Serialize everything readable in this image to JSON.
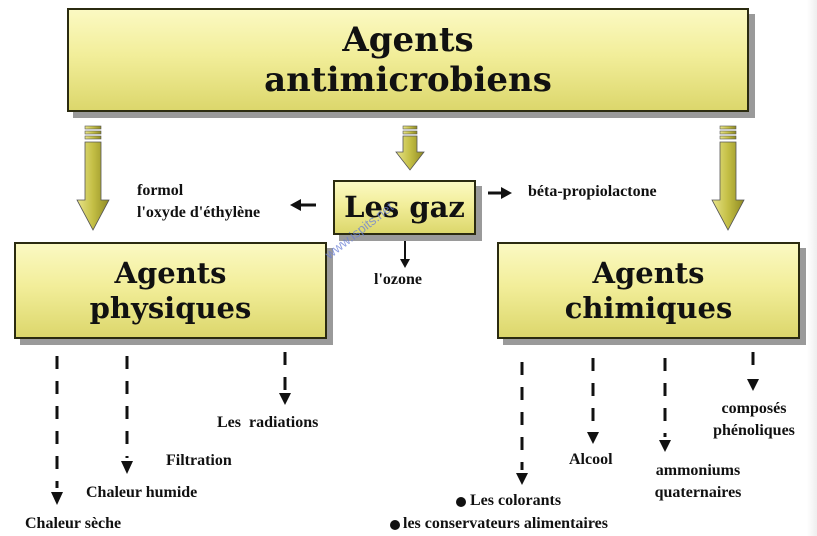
{
  "title": {
    "line1": "Agents",
    "line2": "antimicrobiens"
  },
  "gas": {
    "label": "Les gaz",
    "left_items": [
      "formol",
      "l'oxyde d'éthylène"
    ],
    "right_item": "béta-propiolactone",
    "bottom_item": "l'ozone"
  },
  "physical": {
    "title_line1": "Agents",
    "title_line2": "physiques",
    "items": [
      "Chaleur sèche",
      "Chaleur humide",
      "Filtration",
      "Les  radiations"
    ]
  },
  "chemical": {
    "title_line1": "Agents",
    "title_line2": "chimiques",
    "colorants": "Les colorants",
    "conservateurs": "les conservateurs alimentaires",
    "alcool": "Alcool",
    "ammoniums": [
      "ammoniums",
      "quaternaires"
    ],
    "phenoliques": [
      "composés",
      "phénoliques"
    ]
  },
  "watermark": "www.ispits.net",
  "colors": {
    "box_fill_light": "#fbf9c2",
    "box_fill_dark": "#dcd76c",
    "arrow_fill": "#c4bf45",
    "text": "#111111"
  }
}
